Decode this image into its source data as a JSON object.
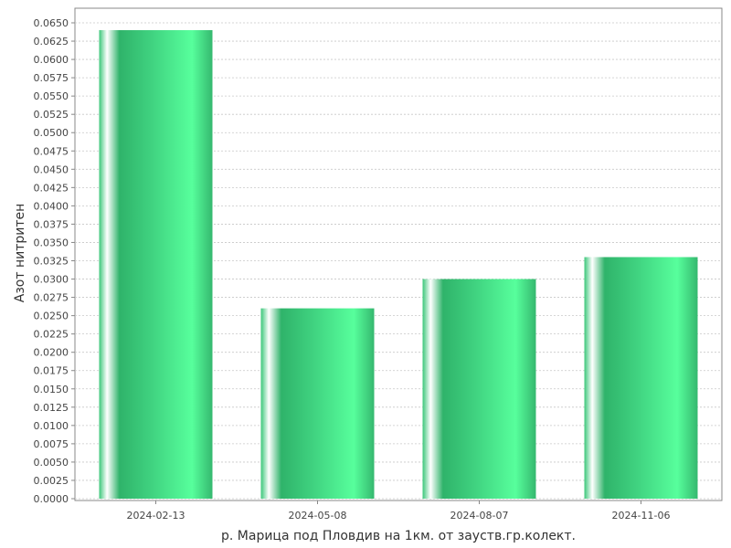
{
  "chart_data": {
    "type": "bar",
    "categories": [
      "2024-02-13",
      "2024-05-08",
      "2024-08-07",
      "2024-11-06"
    ],
    "values": [
      0.064,
      0.026,
      0.03,
      0.033
    ],
    "xlabel": "р. Марица под Пловдив на 1км. от зауств.гр.колект.",
    "ylabel": "Азот нитритен",
    "ylim": [
      0,
      0.066
    ],
    "ytick_step": 0.0025,
    "ytick_decimals": 4,
    "grid": true,
    "colors": {
      "bar_dark": "#2fb36a",
      "bar_light": "#57ff9c",
      "bar_highlight": "#ffffff",
      "grid": "#c8c8c8",
      "frame": "#888888"
    }
  }
}
